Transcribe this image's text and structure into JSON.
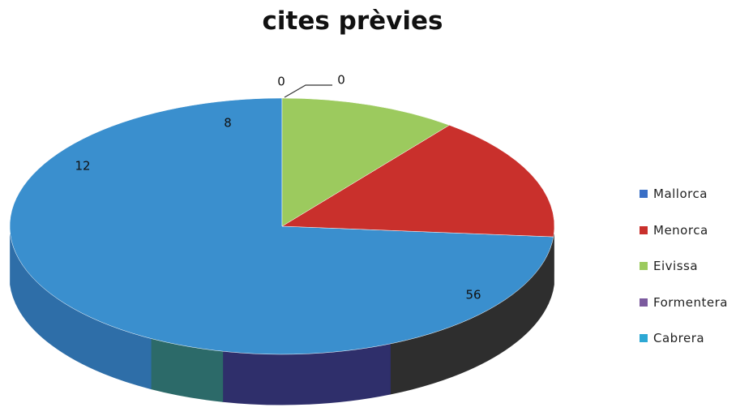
{
  "chart_data": {
    "type": "pie",
    "title": "cites prèvies",
    "series": [
      {
        "name": "Mallorca",
        "value": 56,
        "label": "56",
        "color": "#3a8fce"
      },
      {
        "name": "Menorca",
        "value": 12,
        "label": "12",
        "color": "#c9302c"
      },
      {
        "name": "Eivissa",
        "value": 8,
        "label": "8",
        "color": "#9cca5e"
      },
      {
        "name": "Formentera",
        "value": 0,
        "label": "0",
        "color": "#7b5a9e"
      },
      {
        "name": "Cabrera",
        "value": 0,
        "label": "0",
        "color": "#2da8d4"
      }
    ],
    "legend_position": "right",
    "style": "3d"
  },
  "legend_colors": [
    "#3a6fc6",
    "#c9302c",
    "#9cca5e",
    "#7b5a9e",
    "#2da8d4"
  ]
}
